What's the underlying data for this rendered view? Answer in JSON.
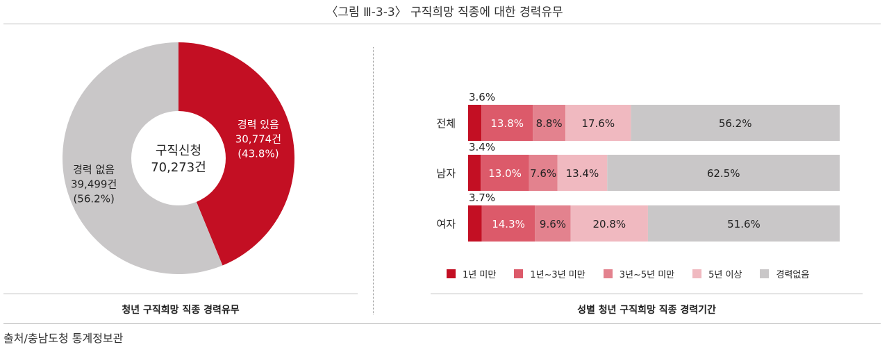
{
  "title": "〈그림 Ⅲ-3-3〉 구직희망 직종에 대한 경력유무",
  "source": "출처/충남도청 통계정보관",
  "colors": {
    "dark_red": "#c30f23",
    "mid_red": "#dc5a6a",
    "rose": "#e3828e",
    "light_pink": "#f0b9c0",
    "gray": "#c9c7c8"
  },
  "chart_data": [
    {
      "type": "pie",
      "caption": "청년 구직희망 직종 경력유무",
      "center_label": [
        "구직신청",
        "70,273건"
      ],
      "slices": [
        {
          "name": "경력 있음",
          "count": "30,774건",
          "percent_label": "(43.8%)",
          "value": 43.8,
          "color": "#c30f23"
        },
        {
          "name": "경력 없음",
          "count": "39,499건",
          "percent_label": "(56.2%)",
          "value": 56.2,
          "color": "#c9c7c8"
        }
      ]
    },
    {
      "type": "bar",
      "orientation": "horizontal",
      "stacked": true,
      "caption": "성별 청년 구직희망 직종 경력기간",
      "categories": [
        "전체",
        "남자",
        "여자"
      ],
      "series": [
        {
          "name": "1년 미만",
          "values": [
            3.6,
            3.4,
            3.7
          ],
          "labels": [
            "3.6%",
            "3.4%",
            "3.7%"
          ],
          "color": "#c30f23"
        },
        {
          "name": "1년~3년 미만",
          "values": [
            13.8,
            13.0,
            14.3
          ],
          "labels": [
            "13.8%",
            "13.0%",
            "14.3%"
          ],
          "color": "#dc5a6a"
        },
        {
          "name": "3년~5년 미만",
          "values": [
            8.8,
            7.6,
            9.6
          ],
          "labels": [
            "8.8%",
            "7.6%",
            "9.6%"
          ],
          "color": "#e3828e"
        },
        {
          "name": "5년 이상",
          "values": [
            17.6,
            13.4,
            20.8
          ],
          "labels": [
            "17.6%",
            "13.4%",
            "20.8%"
          ],
          "color": "#f0b9c0"
        },
        {
          "name": "경력없음",
          "values": [
            56.2,
            62.5,
            51.6
          ],
          "labels": [
            "56.2%",
            "62.5%",
            "51.6%"
          ],
          "color": "#c9c7c8"
        }
      ],
      "legend_position": "bottom"
    }
  ]
}
